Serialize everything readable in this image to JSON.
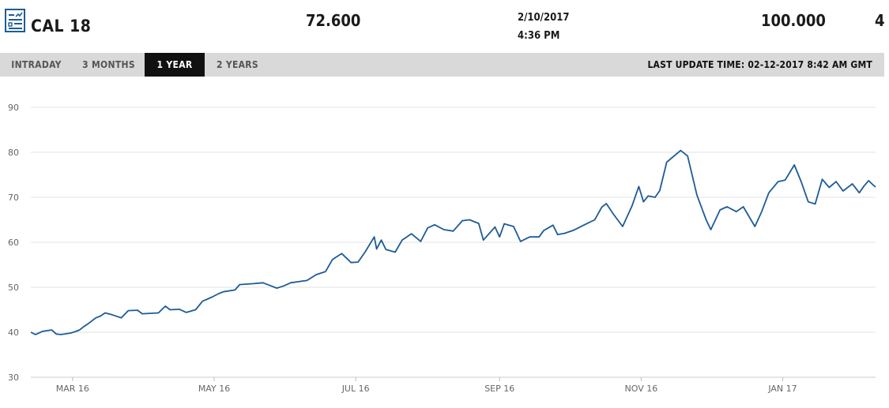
{
  "header": {
    "symbol": "CAL 18",
    "price": "72.600",
    "date": "2/10/2017",
    "time": "4:36 PM",
    "value2": "100.000",
    "value3": "4"
  },
  "tabs": [
    {
      "label": "INTRADAY",
      "active": false
    },
    {
      "label": "3 MONTHS",
      "active": false
    },
    {
      "label": "1 YEAR",
      "active": true
    },
    {
      "label": "2 YEARS",
      "active": false
    }
  ],
  "last_update": "LAST UPDATE TIME: 02-12-2017 8:42 AM GMT",
  "chart_data": {
    "type": "line",
    "title": "",
    "xlabel": "",
    "ylabel": "",
    "ylim": [
      30,
      90
    ],
    "yticks": [
      30,
      40,
      50,
      60,
      70,
      80,
      90
    ],
    "xticks": [
      {
        "label": "MAR 16",
        "date": "2016-03-01"
      },
      {
        "label": "MAY 16",
        "date": "2016-05-01"
      },
      {
        "label": "JUL 16",
        "date": "2016-07-01"
      },
      {
        "label": "SEP 16",
        "date": "2016-09-01"
      },
      {
        "label": "NOV 16",
        "date": "2016-11-01"
      },
      {
        "label": "JAN 17",
        "date": "2017-01-01"
      }
    ],
    "xlim": [
      "2016-02-12",
      "2017-02-10"
    ],
    "grid": true,
    "line_color": "#1d5c96",
    "series": [
      {
        "points": [
          [
            "2016-02-12",
            40.0
          ],
          [
            "2016-02-14",
            39.5
          ],
          [
            "2016-02-17",
            40.2
          ],
          [
            "2016-02-21",
            40.5
          ],
          [
            "2016-02-23",
            39.6
          ],
          [
            "2016-02-25",
            39.5
          ],
          [
            "2016-02-29",
            39.8
          ],
          [
            "2016-03-02",
            40.1
          ],
          [
            "2016-03-04",
            40.5
          ],
          [
            "2016-03-06",
            41.3
          ],
          [
            "2016-03-08",
            42.0
          ],
          [
            "2016-03-11",
            43.2
          ],
          [
            "2016-03-13",
            43.6
          ],
          [
            "2016-03-15",
            44.3
          ],
          [
            "2016-03-18",
            43.9
          ],
          [
            "2016-03-22",
            43.2
          ],
          [
            "2016-03-25",
            44.8
          ],
          [
            "2016-03-29",
            44.9
          ],
          [
            "2016-03-31",
            44.1
          ],
          [
            "2016-04-03",
            44.2
          ],
          [
            "2016-04-07",
            44.3
          ],
          [
            "2016-04-10",
            45.8
          ],
          [
            "2016-04-12",
            45.0
          ],
          [
            "2016-04-16",
            45.1
          ],
          [
            "2016-04-19",
            44.4
          ],
          [
            "2016-04-23",
            45.0
          ],
          [
            "2016-04-26",
            46.9
          ],
          [
            "2016-04-30",
            47.8
          ],
          [
            "2016-05-03",
            48.6
          ],
          [
            "2016-05-05",
            49.0
          ],
          [
            "2016-05-10",
            49.4
          ],
          [
            "2016-05-12",
            50.6
          ],
          [
            "2016-05-18",
            50.8
          ],
          [
            "2016-05-22",
            51.0
          ],
          [
            "2016-05-25",
            50.4
          ],
          [
            "2016-05-28",
            49.8
          ],
          [
            "2016-05-31",
            50.3
          ],
          [
            "2016-06-03",
            51.0
          ],
          [
            "2016-06-07",
            51.3
          ],
          [
            "2016-06-10",
            51.5
          ],
          [
            "2016-06-14",
            52.8
          ],
          [
            "2016-06-18",
            53.5
          ],
          [
            "2016-06-21",
            56.2
          ],
          [
            "2016-06-25",
            57.5
          ],
          [
            "2016-06-29",
            55.5
          ],
          [
            "2016-07-02",
            55.6
          ],
          [
            "2016-07-05",
            57.8
          ],
          [
            "2016-07-09",
            61.2
          ],
          [
            "2016-07-10",
            58.5
          ],
          [
            "2016-07-12",
            60.5
          ],
          [
            "2016-07-14",
            58.4
          ],
          [
            "2016-07-18",
            57.8
          ],
          [
            "2016-07-21",
            60.5
          ],
          [
            "2016-07-25",
            61.9
          ],
          [
            "2016-07-29",
            60.2
          ],
          [
            "2016-08-01",
            63.2
          ],
          [
            "2016-08-04",
            63.9
          ],
          [
            "2016-08-08",
            62.8
          ],
          [
            "2016-08-12",
            62.5
          ],
          [
            "2016-08-16",
            64.8
          ],
          [
            "2016-08-19",
            65.0
          ],
          [
            "2016-08-23",
            64.2
          ],
          [
            "2016-08-25",
            60.5
          ],
          [
            "2016-08-30",
            63.4
          ],
          [
            "2016-09-01",
            61.2
          ],
          [
            "2016-09-03",
            64.1
          ],
          [
            "2016-09-07",
            63.5
          ],
          [
            "2016-09-10",
            60.2
          ],
          [
            "2016-09-14",
            61.2
          ],
          [
            "2016-09-18",
            61.2
          ],
          [
            "2016-09-20",
            62.6
          ],
          [
            "2016-09-24",
            63.8
          ],
          [
            "2016-09-26",
            61.7
          ],
          [
            "2016-09-29",
            62.0
          ],
          [
            "2016-10-03",
            62.7
          ],
          [
            "2016-10-08",
            64.0
          ],
          [
            "2016-10-12",
            65.0
          ],
          [
            "2016-10-15",
            67.8
          ],
          [
            "2016-10-17",
            68.6
          ],
          [
            "2016-10-20",
            66.3
          ],
          [
            "2016-10-24",
            63.5
          ],
          [
            "2016-10-28",
            68.0
          ],
          [
            "2016-10-31",
            72.4
          ],
          [
            "2016-11-02",
            69.0
          ],
          [
            "2016-11-04",
            70.3
          ],
          [
            "2016-11-07",
            70.0
          ],
          [
            "2016-11-09",
            71.5
          ],
          [
            "2016-11-12",
            77.8
          ],
          [
            "2016-11-18",
            80.4
          ],
          [
            "2016-11-21",
            79.2
          ],
          [
            "2016-11-25",
            70.5
          ],
          [
            "2016-11-29",
            65.0
          ],
          [
            "2016-12-01",
            62.8
          ],
          [
            "2016-12-05",
            67.2
          ],
          [
            "2016-12-08",
            67.9
          ],
          [
            "2016-12-12",
            66.8
          ],
          [
            "2016-12-15",
            67.9
          ],
          [
            "2016-12-20",
            63.5
          ],
          [
            "2016-12-23",
            66.9
          ],
          [
            "2016-12-26",
            71.0
          ],
          [
            "2016-12-30",
            73.5
          ],
          [
            "2017-01-02",
            73.8
          ],
          [
            "2017-01-06",
            77.2
          ],
          [
            "2017-01-09",
            73.4
          ],
          [
            "2017-01-12",
            69.0
          ],
          [
            "2017-01-15",
            68.5
          ],
          [
            "2017-01-18",
            74.0
          ],
          [
            "2017-01-21",
            72.2
          ],
          [
            "2017-01-24",
            73.5
          ],
          [
            "2017-01-27",
            71.4
          ],
          [
            "2017-01-31",
            73.0
          ],
          [
            "2017-02-03",
            71.0
          ],
          [
            "2017-02-05",
            72.5
          ],
          [
            "2017-02-07",
            73.7
          ],
          [
            "2017-02-09",
            72.7
          ],
          [
            "2017-02-10",
            72.3
          ]
        ]
      }
    ]
  }
}
